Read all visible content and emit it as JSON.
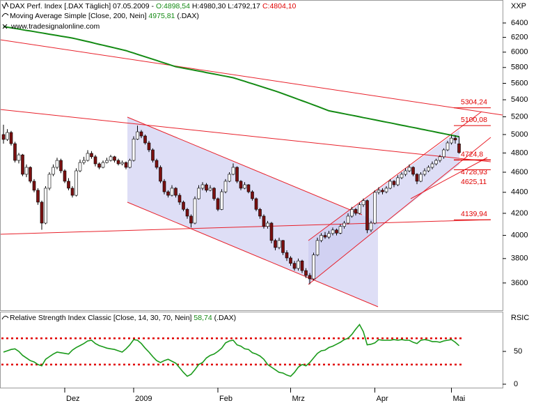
{
  "chart_data": [
    {
      "type": "candlestick",
      "title": "DAX Perf. Index [.DAX Täglich] 07.05.2009 -",
      "title_values": [
        "O:4898,54",
        "H:4980,30",
        "L:4792,17",
        "C:4804,10"
      ],
      "source": "www.tradesignalonline.com",
      "axis_label": "XXP",
      "log": true,
      "ylim": [
        3389,
        6734
      ],
      "yticks": [
        3600,
        3800,
        4000,
        4200,
        4400,
        4600,
        4800,
        5000,
        5200,
        5400,
        5600,
        5800,
        6000,
        6200,
        6400
      ],
      "color_up": "#ffffff",
      "color_down": "#7a1010",
      "categories": [
        null,
        null,
        null,
        null,
        null,
        null,
        null,
        null,
        null,
        null,
        null,
        null,
        null,
        null,
        null,
        null,
        "Dez",
        null,
        null,
        null,
        null,
        null,
        null,
        null,
        null,
        null,
        null,
        null,
        null,
        null,
        null,
        null,
        null,
        null,
        "2009",
        null,
        null,
        null,
        null,
        null,
        null,
        null,
        null,
        null,
        null,
        null,
        null,
        null,
        null,
        null,
        null,
        null,
        null,
        null,
        null,
        null,
        "Feb",
        null,
        null,
        null,
        null,
        null,
        null,
        null,
        null,
        null,
        null,
        null,
        null,
        null,
        null,
        null,
        null,
        null,
        null,
        "Mrz",
        null,
        null,
        null,
        null,
        null,
        null,
        null,
        null,
        null,
        null,
        null,
        null,
        null,
        null,
        null,
        null,
        null,
        null,
        null,
        null,
        null,
        "Apr",
        null,
        null,
        null,
        null,
        null,
        null,
        null,
        null,
        null,
        null,
        null,
        null,
        null,
        null,
        null,
        null,
        null,
        null,
        null,
        "Mai",
        null,
        null
      ],
      "ohlc": [
        [
          5000,
          5110,
          4900,
          4946
        ],
        [
          4946,
          5060,
          4930,
          5023
        ],
        [
          5023,
          5040,
          4880,
          4900
        ],
        [
          4900,
          4920,
          4700,
          4722
        ],
        [
          4722,
          4800,
          4690,
          4780
        ],
        [
          4780,
          4790,
          4560,
          4579
        ],
        [
          4579,
          4680,
          4550,
          4650
        ],
        [
          4650,
          4660,
          4490,
          4509
        ],
        [
          4509,
          4530,
          4400,
          4420
        ],
        [
          4420,
          4440,
          4280,
          4305
        ],
        [
          4305,
          4320,
          4050,
          4110
        ],
        [
          4110,
          4460,
          4100,
          4440
        ],
        [
          4440,
          4600,
          4420,
          4579
        ],
        [
          4579,
          4680,
          4560,
          4650
        ],
        [
          4650,
          4750,
          4630,
          4722
        ],
        [
          4722,
          4740,
          4590,
          4614
        ],
        [
          4614,
          4630,
          4490,
          4509
        ],
        [
          4509,
          4540,
          4420,
          4440
        ],
        [
          4440,
          4460,
          4350,
          4371
        ],
        [
          4371,
          4640,
          4360,
          4614
        ],
        [
          4614,
          4730,
          4600,
          4700
        ],
        [
          4700,
          4760,
          4680,
          4722
        ],
        [
          4722,
          4830,
          4710,
          4796
        ],
        [
          4796,
          4820,
          4740,
          4760
        ],
        [
          4760,
          4780,
          4660,
          4686
        ],
        [
          4686,
          4700,
          4630,
          4650
        ],
        [
          4650,
          4720,
          4640,
          4700
        ],
        [
          4700,
          4750,
          4690,
          4722
        ],
        [
          4722,
          4780,
          4710,
          4760
        ],
        [
          4760,
          4770,
          4700,
          4722
        ],
        [
          4722,
          4740,
          4670,
          4686
        ],
        [
          4686,
          4720,
          4670,
          4700
        ],
        [
          4700,
          4710,
          4630,
          4650
        ],
        [
          4650,
          4740,
          4640,
          4722
        ],
        [
          4722,
          4980,
          4710,
          4950
        ],
        [
          4950,
          5100,
          4940,
          5030
        ],
        [
          5030,
          5050,
          4960,
          4984
        ],
        [
          4984,
          5000,
          4890,
          4908
        ],
        [
          4908,
          4930,
          4810,
          4833
        ],
        [
          4833,
          4850,
          4700,
          4722
        ],
        [
          4722,
          4740,
          4630,
          4650
        ],
        [
          4650,
          4670,
          4490,
          4509
        ],
        [
          4509,
          4530,
          4380,
          4405
        ],
        [
          4405,
          4420,
          4350,
          4371
        ],
        [
          4371,
          4470,
          4360,
          4440
        ],
        [
          4440,
          4450,
          4350,
          4371
        ],
        [
          4371,
          4390,
          4280,
          4305
        ],
        [
          4305,
          4320,
          4220,
          4237
        ],
        [
          4237,
          4250,
          4150,
          4174
        ],
        [
          4174,
          4190,
          4070,
          4110
        ],
        [
          4110,
          4360,
          4100,
          4338
        ],
        [
          4338,
          4470,
          4330,
          4440
        ],
        [
          4440,
          4500,
          4420,
          4474
        ],
        [
          4474,
          4490,
          4400,
          4420
        ],
        [
          4420,
          4470,
          4410,
          4440
        ],
        [
          4440,
          4450,
          4320,
          4338
        ],
        [
          4338,
          4350,
          4220,
          4237
        ],
        [
          4237,
          4430,
          4230,
          4405
        ],
        [
          4405,
          4530,
          4390,
          4509
        ],
        [
          4509,
          4600,
          4500,
          4579
        ],
        [
          4579,
          4690,
          4570,
          4650
        ],
        [
          4650,
          4660,
          4490,
          4509
        ],
        [
          4509,
          4520,
          4420,
          4440
        ],
        [
          4440,
          4500,
          4430,
          4474
        ],
        [
          4474,
          4480,
          4390,
          4405
        ],
        [
          4405,
          4420,
          4320,
          4338
        ],
        [
          4338,
          4350,
          4220,
          4237
        ],
        [
          4237,
          4250,
          4150,
          4174
        ],
        [
          4174,
          4190,
          4060,
          4080
        ],
        [
          4080,
          4130,
          4060,
          4110
        ],
        [
          4110,
          4120,
          3930,
          3955
        ],
        [
          3955,
          3970,
          3870,
          3894
        ],
        [
          3894,
          3980,
          3880,
          3955
        ],
        [
          3955,
          3960,
          3830,
          3850
        ],
        [
          3850,
          3870,
          3780,
          3805
        ],
        [
          3805,
          3820,
          3740,
          3760
        ],
        [
          3760,
          3780,
          3700,
          3718
        ],
        [
          3718,
          3800,
          3700,
          3780
        ],
        [
          3780,
          3790,
          3680,
          3700
        ],
        [
          3700,
          3720,
          3640,
          3661
        ],
        [
          3661,
          3680,
          3590,
          3633
        ],
        [
          3633,
          3850,
          3620,
          3830
        ],
        [
          3830,
          3980,
          3820,
          3955
        ],
        [
          3955,
          4020,
          3940,
          4000
        ],
        [
          4000,
          4030,
          3970,
          3985
        ],
        [
          3985,
          4040,
          3970,
          4017
        ],
        [
          4017,
          4070,
          4000,
          4048
        ],
        [
          4048,
          4060,
          4000,
          4020
        ],
        [
          4020,
          4100,
          4010,
          4080
        ],
        [
          4080,
          4130,
          4060,
          4110
        ],
        [
          4110,
          4200,
          4100,
          4174
        ],
        [
          4174,
          4260,
          4160,
          4237
        ],
        [
          4237,
          4250,
          4180,
          4200
        ],
        [
          4200,
          4300,
          4190,
          4280
        ],
        [
          4280,
          4340,
          4260,
          4320
        ],
        [
          4320,
          4330,
          4020,
          4048
        ],
        [
          4048,
          4130,
          4030,
          4110
        ],
        [
          4110,
          4420,
          4100,
          4400
        ],
        [
          4400,
          4450,
          4380,
          4420
        ],
        [
          4420,
          4440,
          4380,
          4405
        ],
        [
          4405,
          4460,
          4390,
          4440
        ],
        [
          4440,
          4530,
          4430,
          4509
        ],
        [
          4509,
          4520,
          4450,
          4474
        ],
        [
          4474,
          4570,
          4460,
          4544
        ],
        [
          4544,
          4600,
          4530,
          4579
        ],
        [
          4579,
          4640,
          4560,
          4614
        ],
        [
          4614,
          4680,
          4600,
          4650
        ],
        [
          4650,
          4660,
          4560,
          4579
        ],
        [
          4579,
          4590,
          4480,
          4509
        ],
        [
          4509,
          4600,
          4500,
          4579
        ],
        [
          4579,
          4640,
          4560,
          4614
        ],
        [
          4614,
          4670,
          4600,
          4650
        ],
        [
          4650,
          4710,
          4630,
          4686
        ],
        [
          4686,
          4740,
          4670,
          4722
        ],
        [
          4722,
          4780,
          4700,
          4760
        ],
        [
          4760,
          4850,
          4740,
          4833
        ],
        [
          4833,
          4930,
          4820,
          4908
        ],
        [
          4908,
          4990,
          4890,
          4960
        ],
        [
          4960,
          4990,
          4900,
          4940
        ],
        [
          4898.54,
          4980.3,
          4792.17,
          4804.1
        ]
      ],
      "series": [
        {
          "name": "Moving Average Simple [Close, 200, Nein]",
          "value_label": "4975,81",
          "suffix": "(.DAX)",
          "color": "#138a13",
          "values": [
            6350,
            6341,
            6332,
            6323,
            6314,
            6305,
            6296,
            6288,
            6279,
            6270,
            6261,
            6252,
            6243,
            6234,
            6225,
            6216,
            6208,
            6199,
            6190,
            6178,
            6166,
            6154,
            6142,
            6130,
            6117,
            6105,
            6093,
            6081,
            6069,
            6057,
            6045,
            6032,
            6020,
            6004,
            5988,
            5971,
            5955,
            5939,
            5923,
            5907,
            5891,
            5874,
            5858,
            5842,
            5826,
            5810,
            5801,
            5791,
            5782,
            5773,
            5763,
            5754,
            5745,
            5735,
            5726,
            5717,
            5707,
            5698,
            5689,
            5679,
            5670,
            5655,
            5640,
            5625,
            5610,
            5595,
            5580,
            5565,
            5550,
            5535,
            5520,
            5505,
            5490,
            5473,
            5456,
            5439,
            5422,
            5405,
            5388,
            5372,
            5355,
            5338,
            5321,
            5304,
            5287,
            5270,
            5261,
            5253,
            5244,
            5235,
            5226,
            5218,
            5209,
            5200,
            5191,
            5183,
            5174,
            5165,
            5156,
            5148,
            5139,
            5131,
            5122,
            5113,
            5104,
            5096,
            5087,
            5079,
            5070,
            5061,
            5053,
            5044,
            5036,
            5027,
            5018,
            5010,
            5001,
            4993,
            4984,
            4975.81
          ]
        }
      ],
      "annotations": [
        {
          "value": 5304.24,
          "label": "5304,24"
        },
        {
          "value": 5100.08,
          "label": "5100,08"
        },
        {
          "value": 4724.8,
          "label": "4724,8"
        },
        {
          "value": 4728.93,
          "label": "4728,93"
        },
        {
          "value": 4625.11,
          "label": "4625,11"
        },
        {
          "value": 4139.94,
          "label": "4139,94"
        }
      ],
      "annotation_color": "#e00000"
    },
    {
      "type": "line",
      "title": "Relative Strength Index Classic [Close, 14, 30, 70, Nein]",
      "value_label": "58,74",
      "suffix": "(.DAX)",
      "axis_label": "RSIC",
      "ylim": [
        -5.3,
        109.6
      ],
      "yticks": [
        0,
        50
      ],
      "levels": [
        30,
        70
      ],
      "level_color": "#e00000",
      "series": [
        {
          "color": "#1a9a1a",
          "values": [
            49,
            51,
            53,
            54,
            50,
            44,
            40,
            36,
            34,
            30,
            28,
            38,
            42,
            46,
            49,
            48,
            47,
            46,
            52,
            56,
            59,
            62,
            66,
            67,
            62,
            59,
            57,
            55,
            54,
            53,
            51,
            49,
            54,
            60,
            68,
            67,
            62,
            55,
            49,
            42,
            36,
            33,
            36,
            38,
            35,
            32,
            25,
            18,
            12,
            15,
            22,
            30,
            33,
            40,
            44,
            46,
            50,
            55,
            63,
            66,
            67,
            60,
            58,
            54,
            53,
            48,
            46,
            43,
            38,
            30,
            26,
            22,
            18,
            17,
            14,
            12,
            18,
            26,
            30,
            28,
            33,
            40,
            47,
            51,
            52,
            56,
            58,
            61,
            64,
            68,
            70,
            76,
            84,
            91,
            80,
            60,
            61,
            63,
            68,
            67,
            67,
            67,
            68,
            67,
            68,
            67,
            67,
            64,
            62,
            67,
            68,
            67,
            65,
            65,
            64,
            66,
            67,
            68,
            64,
            58.74
          ]
        }
      ]
    }
  ]
}
